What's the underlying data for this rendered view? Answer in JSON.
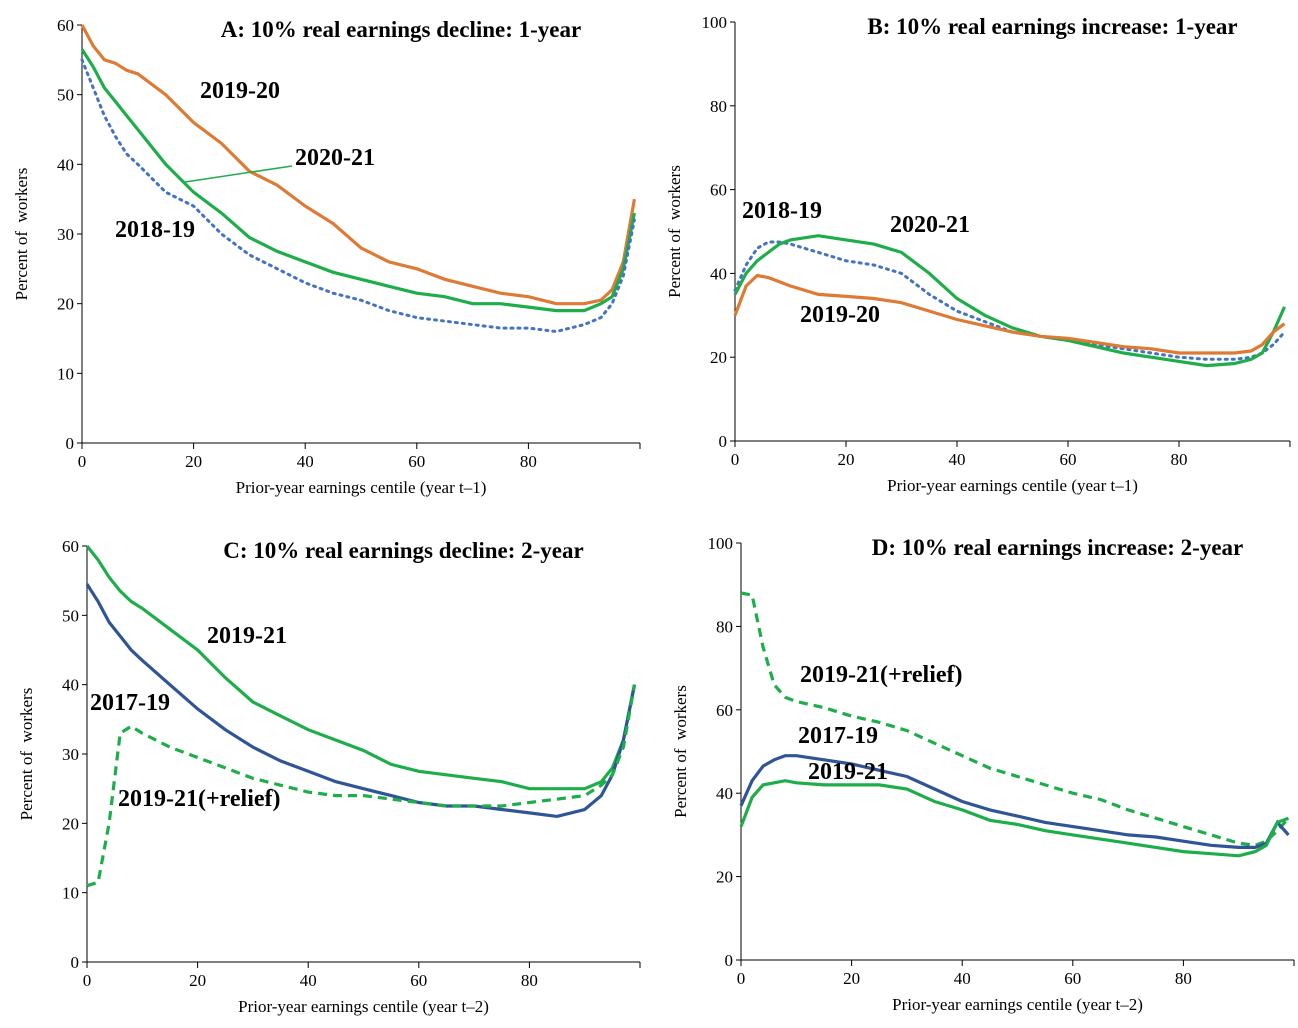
{
  "chart_data": [
    {
      "type": "line",
      "title": "A: 10% real earnings decline: 1-year",
      "x_label": "Prior-year earnings centile (year t–1)",
      "y_label": "Percent of  workers",
      "x": [
        0,
        2,
        4,
        6,
        8,
        10,
        15,
        20,
        25,
        30,
        35,
        40,
        45,
        50,
        55,
        60,
        65,
        70,
        75,
        80,
        85,
        90,
        93,
        95,
        97,
        99
      ],
      "xlim": [
        0,
        100
      ],
      "xticks": [
        0,
        20,
        40,
        60,
        80
      ],
      "ylim": [
        0,
        60
      ],
      "yticks": [
        0,
        10,
        20,
        30,
        40,
        50,
        60
      ],
      "series": [
        {
          "name": "2019-20",
          "color": "#DE7A34",
          "line_style": "solid",
          "values": [
            60,
            57,
            55,
            54.5,
            53.5,
            53,
            50,
            46,
            43,
            39,
            37,
            34,
            31.5,
            28,
            26,
            25,
            23.5,
            22.5,
            21.5,
            21,
            20,
            20,
            20.5,
            22,
            26,
            35
          ]
        },
        {
          "name": "2020-21",
          "color": "#1DAE4A",
          "line_style": "solid",
          "values": [
            56.5,
            54,
            51,
            49,
            47,
            45,
            40,
            36,
            33,
            29.5,
            27.5,
            26,
            24.5,
            23.5,
            22.5,
            21.5,
            21,
            20,
            20,
            19.5,
            19,
            19,
            20,
            21,
            25,
            33
          ]
        },
        {
          "name": "2018-19",
          "color": "#4472C4",
          "line_style": "dotted",
          "values": [
            55,
            51,
            47,
            44,
            41.5,
            40,
            36,
            34,
            30,
            27,
            25,
            23,
            21.5,
            20.5,
            19,
            18,
            17.5,
            17,
            16.5,
            16.5,
            16,
            17,
            18,
            20,
            24,
            32
          ]
        }
      ]
    },
    {
      "type": "line",
      "title": "B: 10% real earnings increase: 1-year",
      "x_label": "Prior-year earnings centile (year t–1)",
      "y_label": "Percent of  workers",
      "x": [
        0,
        2,
        4,
        6,
        8,
        10,
        15,
        20,
        25,
        30,
        35,
        40,
        45,
        50,
        55,
        60,
        65,
        70,
        75,
        80,
        85,
        90,
        93,
        95,
        97,
        99
      ],
      "xlim": [
        0,
        100
      ],
      "xticks": [
        0,
        20,
        40,
        60,
        80
      ],
      "ylim": [
        0,
        100
      ],
      "yticks": [
        0,
        20,
        40,
        60,
        80,
        100
      ],
      "series": [
        {
          "name": "2018-19",
          "color": "#4472C4",
          "line_style": "dotted",
          "values": [
            36,
            42,
            46,
            47.5,
            47.5,
            47,
            45,
            43,
            42,
            40,
            35,
            31,
            28.5,
            26,
            25,
            24,
            23,
            22,
            21,
            20,
            19.5,
            19.5,
            20,
            21,
            23,
            26
          ]
        },
        {
          "name": "2020-21",
          "color": "#1DAE4A",
          "line_style": "solid",
          "values": [
            35,
            40,
            43,
            45,
            47,
            48,
            49,
            48,
            47,
            45,
            40,
            34,
            30,
            27,
            25,
            24,
            22.5,
            21,
            20,
            19,
            18,
            18.5,
            19.5,
            21,
            26,
            32
          ]
        },
        {
          "name": "2019-20",
          "color": "#DE7A34",
          "line_style": "solid",
          "values": [
            30,
            37,
            39.5,
            39,
            38,
            37,
            35,
            34.5,
            34,
            33,
            31,
            29,
            27.5,
            26,
            25,
            24.5,
            23.5,
            22.5,
            22,
            21,
            21,
            21,
            21.5,
            23,
            26,
            28
          ]
        }
      ]
    },
    {
      "type": "line",
      "title": "C: 10% real earnings decline: 2-year",
      "x_label": "Prior-year earnings centile (year t–2)",
      "y_label": "Percent of  workers",
      "x": [
        0,
        2,
        4,
        6,
        8,
        10,
        15,
        20,
        25,
        30,
        35,
        40,
        45,
        50,
        55,
        60,
        65,
        70,
        75,
        80,
        85,
        90,
        93,
        95,
        97,
        99
      ],
      "xlim": [
        0,
        100
      ],
      "xticks": [
        0,
        20,
        40,
        60,
        80
      ],
      "ylim": [
        0,
        60
      ],
      "yticks": [
        0,
        10,
        20,
        30,
        40,
        50,
        60
      ],
      "series": [
        {
          "name": "2019-21",
          "color": "#1DAE4A",
          "line_style": "solid",
          "values": [
            60,
            58,
            55.5,
            53.5,
            52,
            51,
            48,
            45,
            41,
            37.5,
            35.5,
            33.5,
            32,
            30.5,
            28.5,
            27.5,
            27,
            26.5,
            26,
            25,
            25,
            25,
            26,
            28,
            32,
            40
          ]
        },
        {
          "name": "2017-19",
          "color": "#2F5597",
          "line_style": "solid",
          "values": [
            54.5,
            52,
            49,
            47,
            45,
            43.5,
            40,
            36.5,
            33.5,
            31,
            29,
            27.5,
            26,
            25,
            24,
            23,
            22.5,
            22.5,
            22,
            21.5,
            21,
            22,
            24,
            27,
            32,
            40
          ]
        },
        {
          "name": "2019-21(+relief)",
          "color": "#1DAE4A",
          "line_style": "dashed",
          "values": [
            11,
            11.5,
            20,
            33,
            34,
            33,
            31,
            29.5,
            28,
            26.5,
            25.5,
            24.5,
            24,
            24,
            23.5,
            23,
            22.5,
            22.5,
            22.5,
            23,
            23.5,
            24,
            25.5,
            27,
            31,
            40
          ]
        }
      ]
    },
    {
      "type": "line",
      "title": "D: 10% real earnings increase: 2-year",
      "x_label": "Prior-year earnings centile (year t–2)",
      "y_label": "Percent of  workers",
      "x": [
        0,
        2,
        4,
        6,
        8,
        10,
        15,
        20,
        25,
        30,
        35,
        40,
        45,
        50,
        55,
        60,
        65,
        70,
        75,
        80,
        85,
        90,
        93,
        95,
        97,
        99
      ],
      "xlim": [
        0,
        100
      ],
      "xticks": [
        0,
        20,
        40,
        60,
        80
      ],
      "ylim": [
        0,
        100
      ],
      "yticks": [
        0,
        20,
        40,
        60,
        80,
        100
      ],
      "series": [
        {
          "name": "2019-21(+relief)",
          "color": "#1DAE4A",
          "line_style": "dashed",
          "values": [
            88,
            87.5,
            75,
            66,
            63,
            62,
            60.5,
            58.5,
            57,
            55,
            52,
            49,
            46,
            44,
            42,
            40,
            38.5,
            36,
            34,
            32,
            30,
            28,
            27.5,
            28.5,
            31,
            34
          ]
        },
        {
          "name": "2017-19",
          "color": "#2F5597",
          "line_style": "solid",
          "values": [
            37,
            43,
            46.5,
            48,
            49,
            49,
            48,
            47,
            45.5,
            44,
            41,
            38,
            36,
            34.5,
            33,
            32,
            31,
            30,
            29.5,
            28.5,
            27.5,
            27,
            27,
            28,
            33,
            30
          ]
        },
        {
          "name": "2019-21",
          "color": "#1DAE4A",
          "line_style": "solid",
          "values": [
            32,
            39,
            42,
            42.5,
            43,
            42.5,
            42,
            42,
            42,
            41,
            38,
            36,
            33.5,
            32.5,
            31,
            30,
            29,
            28,
            27,
            26,
            25.5,
            25,
            26,
            27.5,
            33,
            34
          ]
        }
      ]
    }
  ]
}
